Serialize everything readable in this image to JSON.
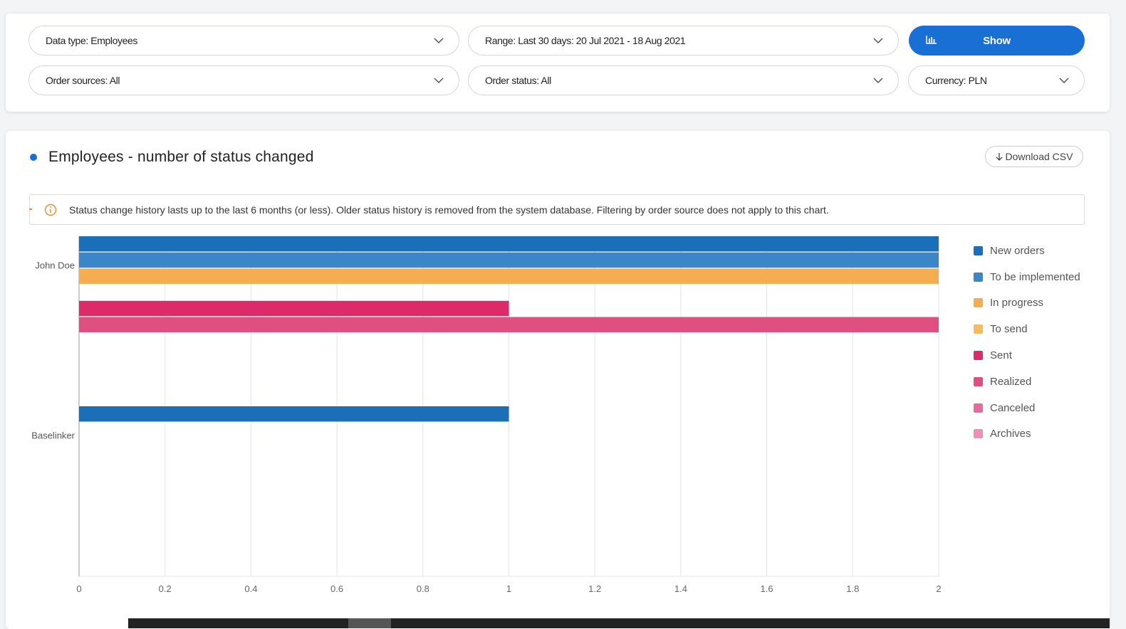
{
  "filters": {
    "data_type": "Data type: Employees",
    "range": "Range: Last 30 days: 20 Jul 2021 - 18 Aug 2021",
    "show_label": "Show",
    "order_sources": "Order sources: All",
    "order_status": "Order status: All",
    "currency": "Currency: PLN"
  },
  "panel": {
    "title": "Employees - number of status changed",
    "download_label": "Download CSV",
    "info_text": "Status change history lasts up to the last 6 months (or less). Older status history is removed from the system database. Filtering by order source does not apply to this chart."
  },
  "colors": {
    "accent": "#1a6fd4",
    "warning": "#f08a24"
  },
  "chart_data": {
    "type": "bar",
    "orientation": "horizontal",
    "categories": [
      "John Doe",
      "Baselinker"
    ],
    "xlim": [
      0,
      2
    ],
    "x_ticks": [
      "0",
      "0.2",
      "0.4",
      "0.6",
      "0.8",
      "1",
      "1.2",
      "1.4",
      "1.6",
      "1.8",
      "2"
    ],
    "grid": true,
    "legend_position": "right",
    "series": [
      {
        "name": "New orders",
        "color": "#1a6fb8",
        "values": [
          2,
          1
        ]
      },
      {
        "name": "To be implemented",
        "color": "#3a86c8",
        "values": [
          2,
          0
        ]
      },
      {
        "name": "In progress",
        "color": "#f5ad52",
        "values": [
          2,
          0
        ]
      },
      {
        "name": "To send",
        "color": "#f6bd60",
        "values": [
          0,
          0
        ]
      },
      {
        "name": "Sent",
        "color": "#dc2b68",
        "values": [
          1,
          0
        ]
      },
      {
        "name": "Realized",
        "color": "#df4f80",
        "values": [
          2,
          0
        ]
      },
      {
        "name": "Canceled",
        "color": "#e86a9a",
        "values": [
          0,
          0
        ]
      },
      {
        "name": "Archives",
        "color": "#ee8fb4",
        "values": [
          0,
          0
        ]
      }
    ]
  }
}
